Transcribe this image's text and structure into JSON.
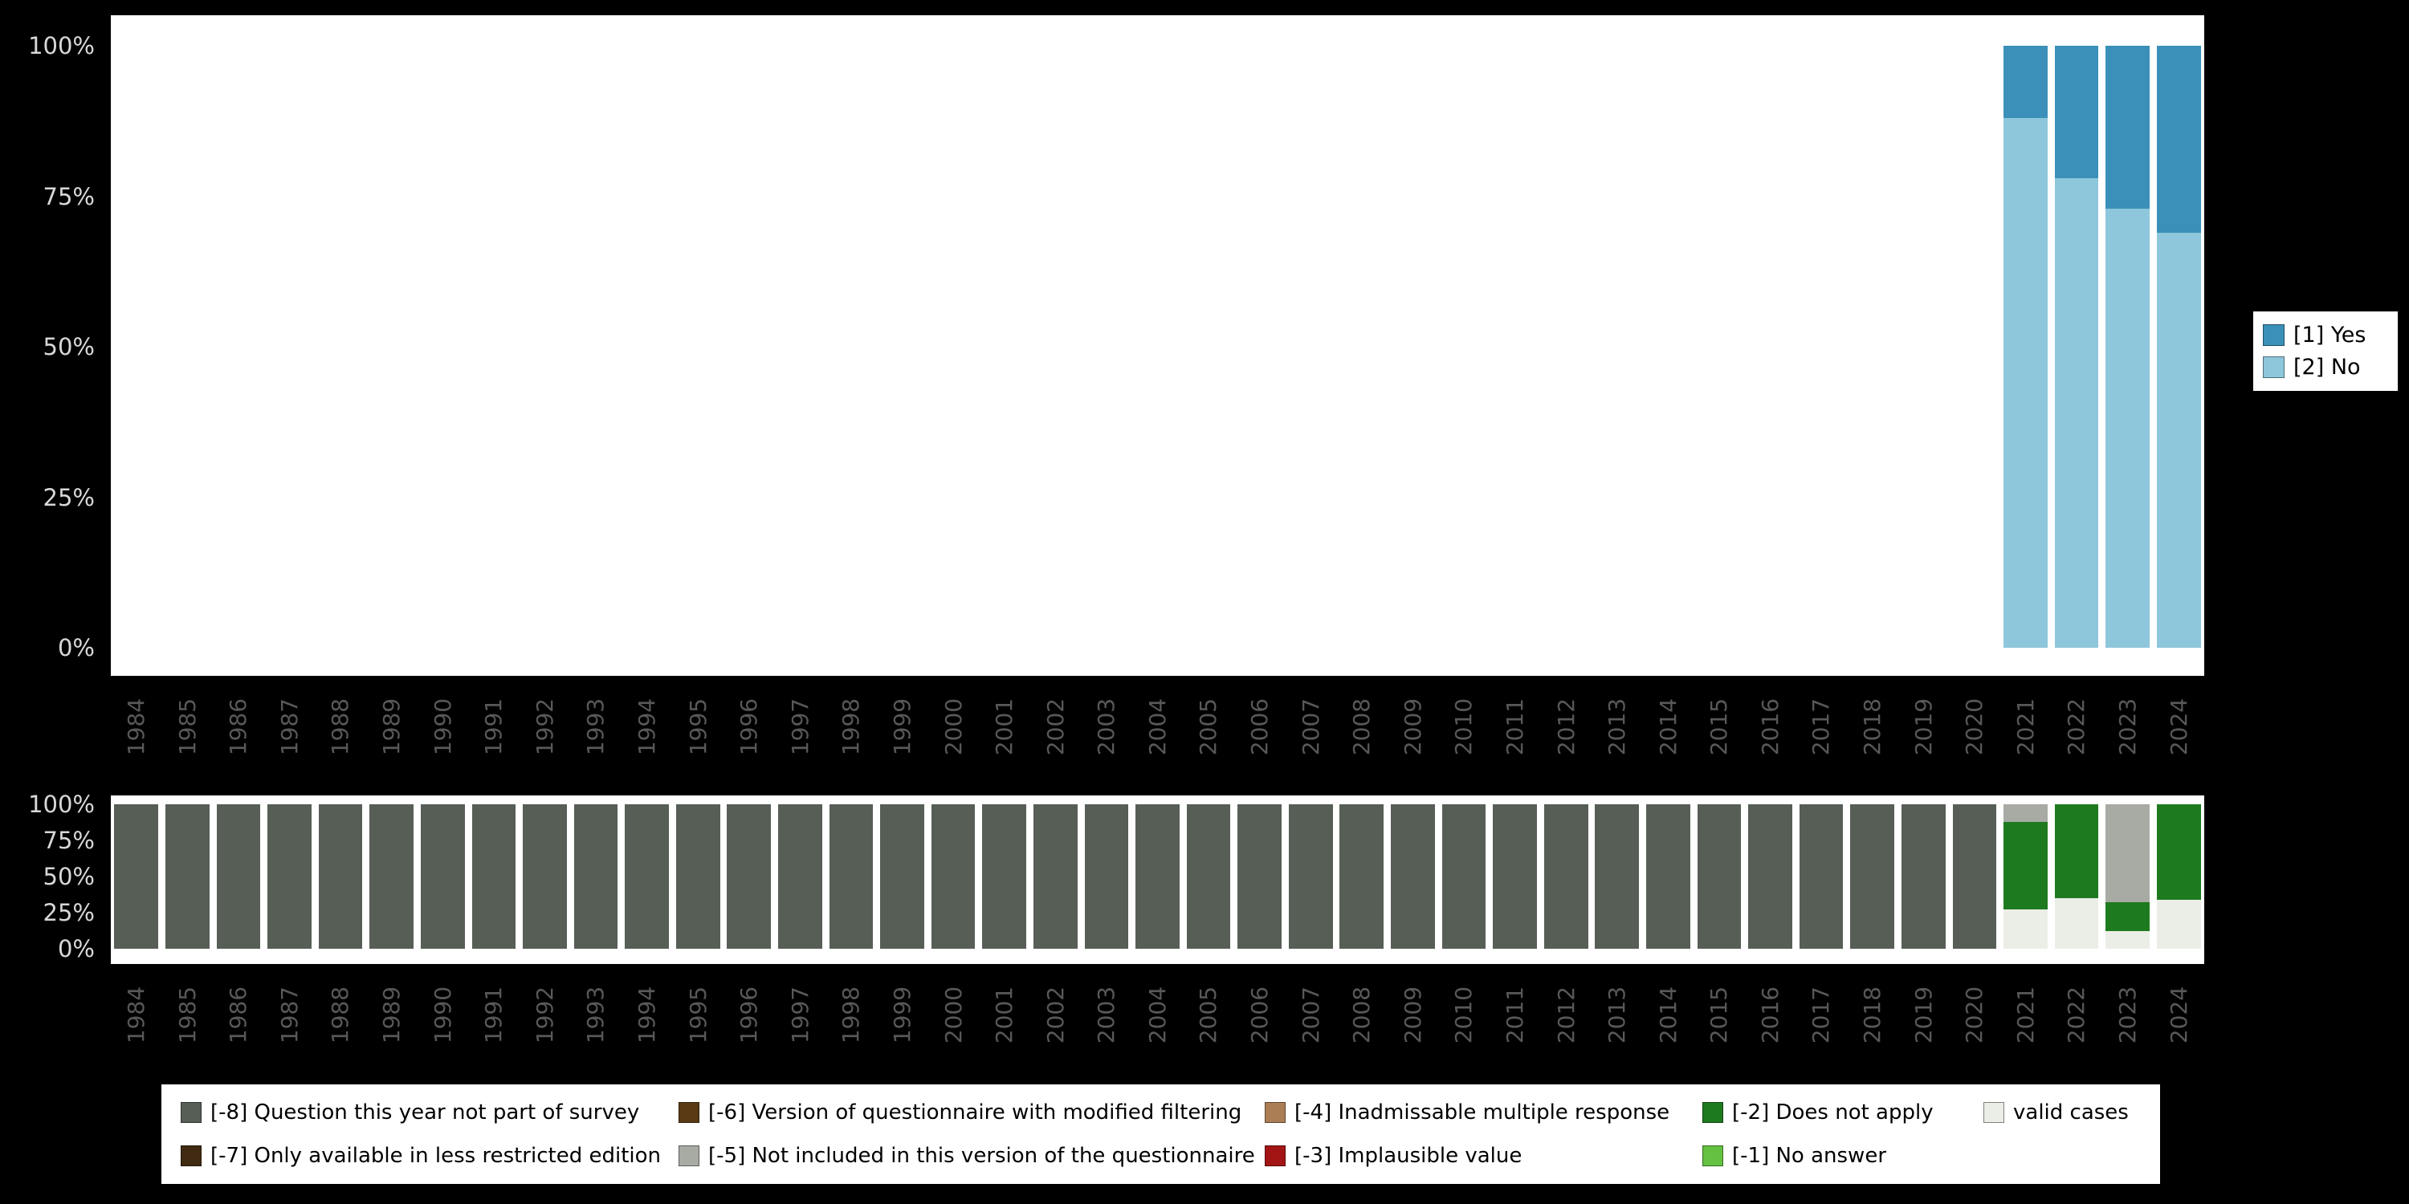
{
  "canvas": {
    "background": "#000000",
    "panel_background": "#ffffff"
  },
  "chart_data": [
    {
      "type": "bar",
      "stacked": true,
      "title": "",
      "xlabel": "",
      "ylabel": "",
      "ylim": [
        0,
        100
      ],
      "grid": false,
      "legend_position": "right",
      "categories": [
        "1984",
        "1985",
        "1986",
        "1987",
        "1988",
        "1989",
        "1990",
        "1991",
        "1992",
        "1993",
        "1994",
        "1995",
        "1996",
        "1997",
        "1998",
        "1999",
        "2000",
        "2001",
        "2002",
        "2003",
        "2004",
        "2005",
        "2006",
        "2007",
        "2008",
        "2009",
        "2010",
        "2011",
        "2012",
        "2013",
        "2014",
        "2015",
        "2016",
        "2017",
        "2018",
        "2019",
        "2020",
        "2021",
        "2022",
        "2023",
        "2024"
      ],
      "yticks": [
        {
          "label": "100%",
          "value": 100
        },
        {
          "label": "75%",
          "value": 75
        },
        {
          "label": "50%",
          "value": 50
        },
        {
          "label": "25%",
          "value": 25
        },
        {
          "label": "0%",
          "value": 0
        }
      ],
      "series": [
        {
          "name": "[1] Yes",
          "color": "#3a90b8",
          "values": [
            0,
            0,
            0,
            0,
            0,
            0,
            0,
            0,
            0,
            0,
            0,
            0,
            0,
            0,
            0,
            0,
            0,
            0,
            0,
            0,
            0,
            0,
            0,
            0,
            0,
            0,
            0,
            0,
            0,
            0,
            0,
            0,
            0,
            0,
            0,
            0,
            0,
            12,
            22,
            27,
            31
          ]
        },
        {
          "name": "[2] No",
          "color": "#8ec6db",
          "values": [
            0,
            0,
            0,
            0,
            0,
            0,
            0,
            0,
            0,
            0,
            0,
            0,
            0,
            0,
            0,
            0,
            0,
            0,
            0,
            0,
            0,
            0,
            0,
            0,
            0,
            0,
            0,
            0,
            0,
            0,
            0,
            0,
            0,
            0,
            0,
            0,
            0,
            88,
            78,
            73,
            69
          ]
        }
      ],
      "stack_order_bottom_to_top": [
        1,
        0
      ]
    },
    {
      "type": "bar",
      "stacked": true,
      "title": "",
      "xlabel": "",
      "ylabel": "",
      "ylim": [
        0,
        100
      ],
      "grid": false,
      "legend_position": "bottom",
      "categories": [
        "1984",
        "1985",
        "1986",
        "1987",
        "1988",
        "1989",
        "1990",
        "1991",
        "1992",
        "1993",
        "1994",
        "1995",
        "1996",
        "1997",
        "1998",
        "1999",
        "2000",
        "2001",
        "2002",
        "2003",
        "2004",
        "2005",
        "2006",
        "2007",
        "2008",
        "2009",
        "2010",
        "2011",
        "2012",
        "2013",
        "2014",
        "2015",
        "2016",
        "2017",
        "2018",
        "2019",
        "2020",
        "2021",
        "2022",
        "2023",
        "2024"
      ],
      "yticks": [
        {
          "label": "100%",
          "value": 100
        },
        {
          "label": "75%",
          "value": 75
        },
        {
          "label": "50%",
          "value": 50
        },
        {
          "label": "25%",
          "value": 25
        },
        {
          "label": "0%",
          "value": 0
        }
      ],
      "series": [
        {
          "name": "valid cases",
          "color": "#ebeee6",
          "values": [
            0,
            0,
            0,
            0,
            0,
            0,
            0,
            0,
            0,
            0,
            0,
            0,
            0,
            0,
            0,
            0,
            0,
            0,
            0,
            0,
            0,
            0,
            0,
            0,
            0,
            0,
            0,
            0,
            0,
            0,
            0,
            0,
            0,
            0,
            0,
            0,
            0,
            27,
            35,
            12,
            34
          ]
        },
        {
          "name": "[-2] Does not apply",
          "color": "#1e7a1e",
          "values": [
            0,
            0,
            0,
            0,
            0,
            0,
            0,
            0,
            0,
            0,
            0,
            0,
            0,
            0,
            0,
            0,
            0,
            0,
            0,
            0,
            0,
            0,
            0,
            0,
            0,
            0,
            0,
            0,
            0,
            0,
            0,
            0,
            0,
            0,
            0,
            0,
            0,
            61,
            65,
            20,
            66
          ]
        },
        {
          "name": "[-5] Not included in this version of the questionnaire",
          "color": "#a7aba4",
          "values": [
            0,
            0,
            0,
            0,
            0,
            0,
            0,
            0,
            0,
            0,
            0,
            0,
            0,
            0,
            0,
            0,
            0,
            0,
            0,
            0,
            0,
            0,
            0,
            0,
            0,
            0,
            0,
            0,
            0,
            0,
            0,
            0,
            0,
            0,
            0,
            0,
            0,
            12,
            0,
            68,
            0
          ]
        },
        {
          "name": "[-8] Question this year not part of survey",
          "color": "#565e56",
          "values": [
            100,
            100,
            100,
            100,
            100,
            100,
            100,
            100,
            100,
            100,
            100,
            100,
            100,
            100,
            100,
            100,
            100,
            100,
            100,
            100,
            100,
            100,
            100,
            100,
            100,
            100,
            100,
            100,
            100,
            100,
            100,
            100,
            100,
            100,
            100,
            100,
            100,
            0,
            0,
            0,
            0
          ]
        }
      ],
      "stack_order_bottom_to_top": [
        0,
        1,
        2,
        3
      ],
      "legend_items_row_major": [
        {
          "label": "[-8] Question this year not part of survey",
          "color": "#565e56"
        },
        {
          "label": "[-6] Version of questionnaire with modified filtering",
          "color": "#593a14"
        },
        {
          "label": "[-4] Inadmissable multiple response",
          "color": "#ab7e55"
        },
        {
          "label": "[-2] Does not apply",
          "color": "#1e7a1e"
        },
        {
          "label": "valid cases",
          "color": "#ebeee6"
        },
        {
          "label": "[-7] Only available in less restricted edition",
          "color": "#402a12"
        },
        {
          "label": "[-5] Not included in this version of the questionnaire",
          "color": "#a7aba4"
        },
        {
          "label": "[-3] Implausible value",
          "color": "#a31515"
        },
        {
          "label": "[-1] No answer",
          "color": "#64c141"
        }
      ]
    }
  ]
}
